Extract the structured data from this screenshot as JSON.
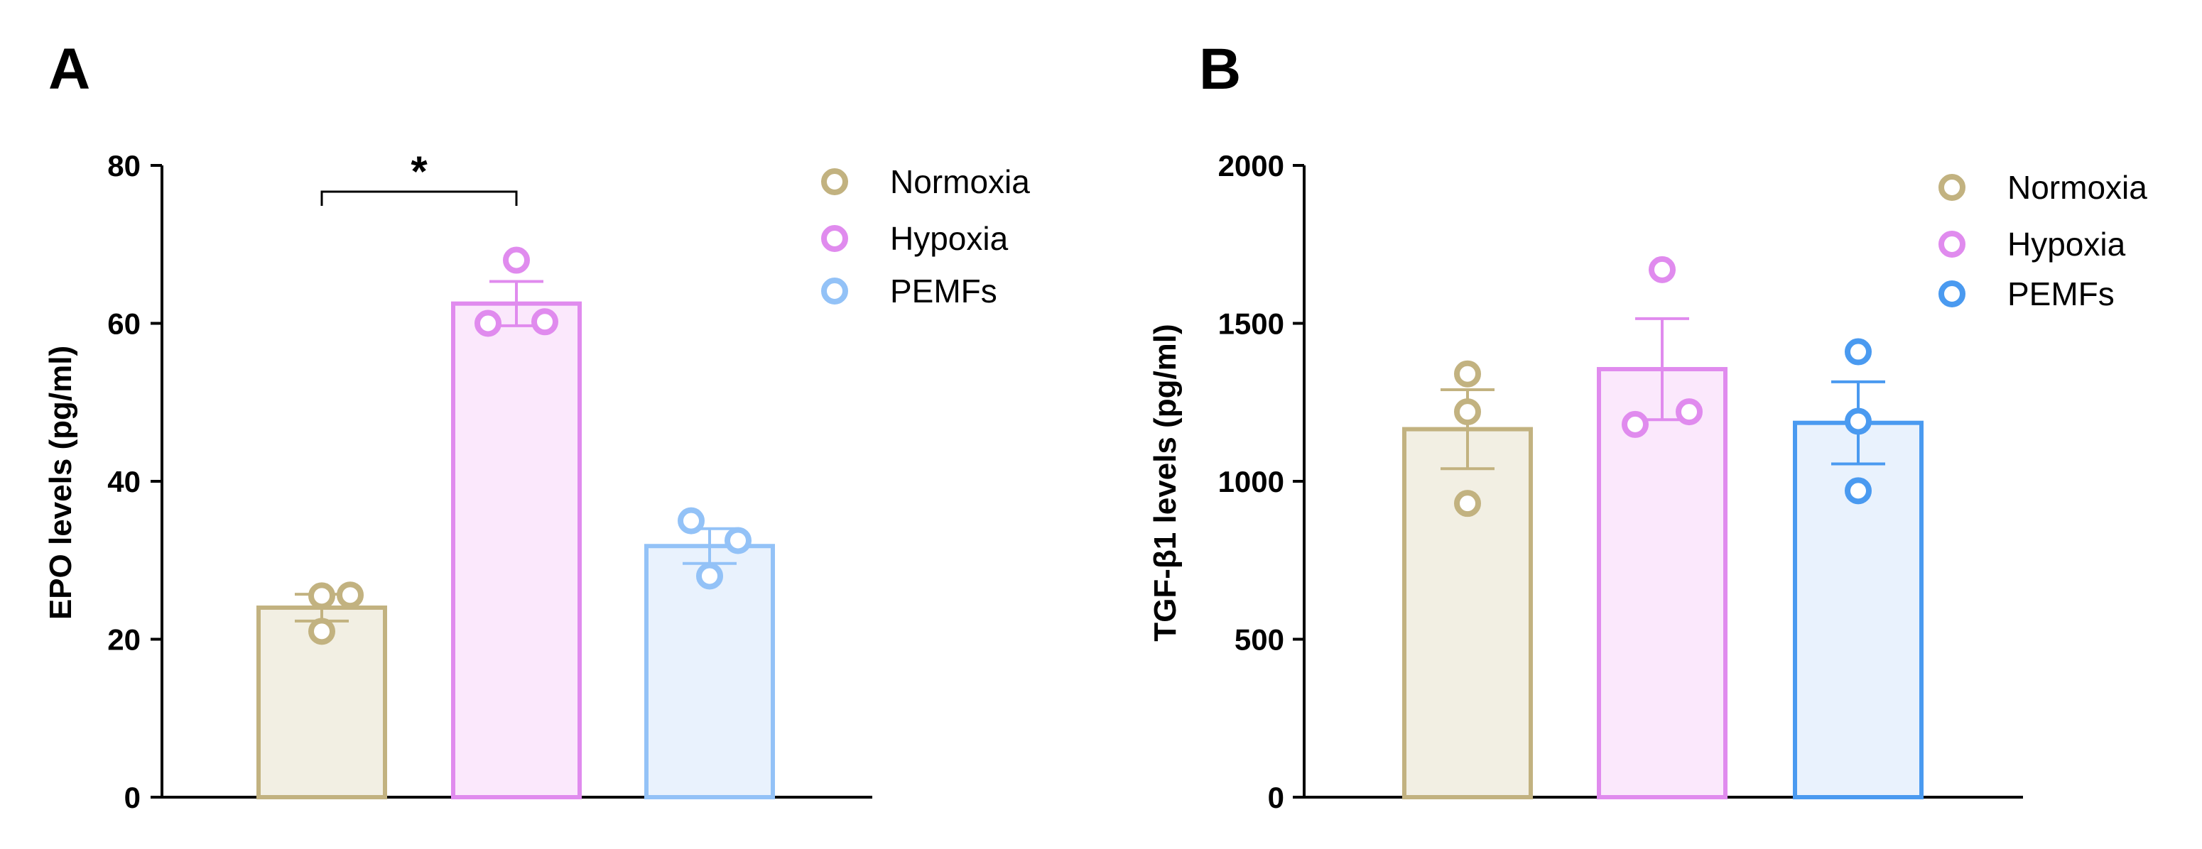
{
  "chart_data": [
    {
      "panel": "A",
      "type": "bar",
      "ylabel": "EPO levels (pg/ml)",
      "xlabel": "",
      "ylim": [
        0,
        80
      ],
      "yticks": [
        0,
        20,
        40,
        60,
        80
      ],
      "categories": [
        "Normoxia",
        "Hypoxia",
        "PEMFs"
      ],
      "means": [
        24,
        62.5,
        31.8
      ],
      "sem": [
        1.7,
        2.8,
        2.2
      ],
      "points": [
        [
          25.5,
          25.6,
          21.0
        ],
        [
          60.0,
          68.0,
          60.2
        ],
        [
          35.0,
          32.5,
          28.0
        ]
      ],
      "colors": {
        "stroke": [
          "#c2b280",
          "#e08bee",
          "#93c2f7"
        ],
        "fill": [
          "#f2efe3",
          "#fbe8fc",
          "#e9f2fd"
        ]
      },
      "legend": [
        "Normoxia",
        "Hypoxia",
        "PEMFs"
      ],
      "significance": [
        {
          "from": 0,
          "to": 1,
          "label": "*"
        }
      ]
    },
    {
      "panel": "B",
      "type": "bar",
      "ylabel": "TGF-β1 levels (pg/ml)",
      "xlabel": "",
      "ylim": [
        0,
        2000
      ],
      "yticks": [
        0,
        500,
        1000,
        1500,
        2000
      ],
      "categories": [
        "Normoxia",
        "Hypoxia",
        "PEMFs"
      ],
      "means": [
        1165,
        1355,
        1185
      ],
      "sem": [
        125,
        160,
        130
      ],
      "points": [
        [
          1340,
          1220,
          930
        ],
        [
          1670,
          1180,
          1220
        ],
        [
          1410,
          1190,
          970
        ]
      ],
      "colors": {
        "stroke": [
          "#c2b280",
          "#e08bee",
          "#4a9af0"
        ],
        "fill": [
          "#f2efe3",
          "#fbe8fc",
          "#e9f2fd"
        ]
      },
      "legend": [
        "Normoxia",
        "Hypoxia",
        "PEMFs"
      ],
      "significance": []
    }
  ]
}
